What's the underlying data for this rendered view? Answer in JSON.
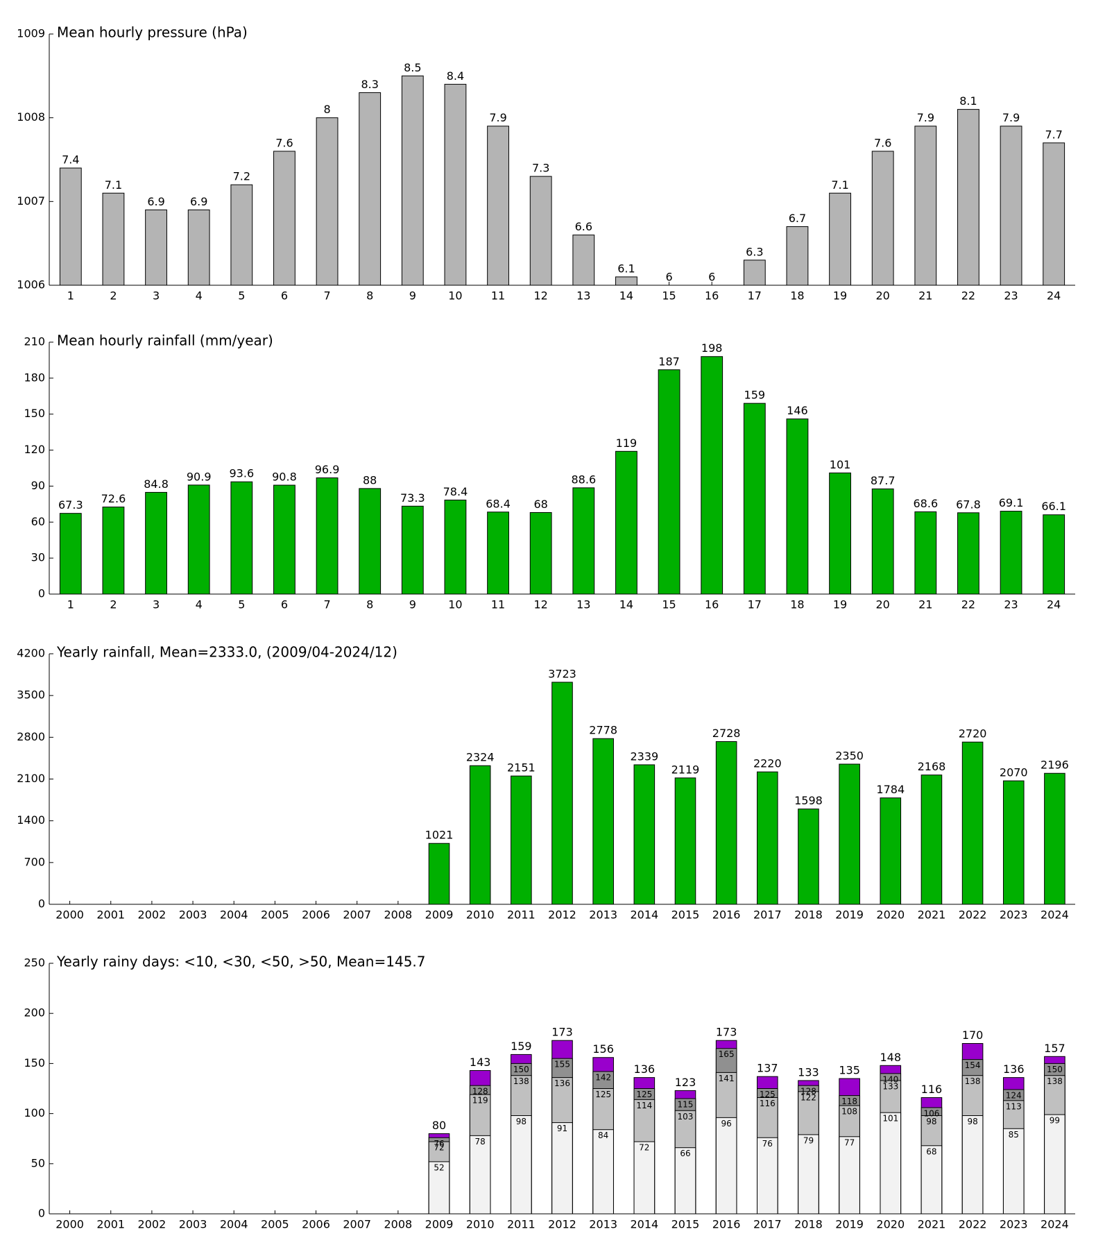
{
  "chart_data": [
    {
      "type": "bar",
      "title": "Mean hourly pressure (hPa)",
      "categories": [
        "1",
        "2",
        "3",
        "4",
        "5",
        "6",
        "7",
        "8",
        "9",
        "10",
        "11",
        "12",
        "13",
        "14",
        "15",
        "16",
        "17",
        "18",
        "19",
        "20",
        "21",
        "22",
        "23",
        "24"
      ],
      "values": [
        1007.4,
        1007.1,
        1006.9,
        1006.9,
        1007.2,
        1007.6,
        1008.0,
        1008.3,
        1008.5,
        1008.4,
        1007.9,
        1007.3,
        1006.6,
        1006.1,
        1006.0,
        1006.0,
        1006.3,
        1006.7,
        1007.1,
        1007.6,
        1007.9,
        1008.1,
        1007.9,
        1007.7
      ],
      "value_labels": [
        "7.4",
        "7.1",
        "6.9",
        "6.9",
        "7.2",
        "7.6",
        "8",
        "8.3",
        "8.5",
        "8.4",
        "7.9",
        "7.3",
        "6.6",
        "6.1",
        "6",
        "6",
        "6.3",
        "6.7",
        "7.1",
        "7.6",
        "7.9",
        "8.1",
        "7.9",
        "7.7"
      ],
      "color": "#b4b4b4",
      "ylim": [
        1006,
        1009
      ],
      "yticks": [
        1006,
        1007,
        1008,
        1009
      ]
    },
    {
      "type": "bar",
      "title": "Mean hourly rainfall (mm/year)",
      "categories": [
        "1",
        "2",
        "3",
        "4",
        "5",
        "6",
        "7",
        "8",
        "9",
        "10",
        "11",
        "12",
        "13",
        "14",
        "15",
        "16",
        "17",
        "18",
        "19",
        "20",
        "21",
        "22",
        "23",
        "24"
      ],
      "values": [
        67.3,
        72.6,
        84.8,
        90.9,
        93.6,
        90.8,
        96.9,
        88,
        73.3,
        78.4,
        68.4,
        68,
        88.6,
        119,
        187,
        198,
        159,
        146,
        101,
        87.7,
        68.6,
        67.8,
        69.1,
        66.1
      ],
      "color": "#00b000",
      "ylim": [
        0,
        210
      ],
      "yticks": [
        0,
        30,
        60,
        90,
        120,
        150,
        180,
        210
      ]
    },
    {
      "type": "bar",
      "title": "Yearly rainfall, Mean=2333.0, (2009/04-2024/12)",
      "categories": [
        "2000",
        "2001",
        "2002",
        "2003",
        "2004",
        "2005",
        "2006",
        "2007",
        "2008",
        "2009",
        "2010",
        "2011",
        "2012",
        "2013",
        "2014",
        "2015",
        "2016",
        "2017",
        "2018",
        "2019",
        "2020",
        "2021",
        "2022",
        "2023",
        "2024"
      ],
      "values": [
        null,
        null,
        null,
        null,
        null,
        null,
        null,
        null,
        null,
        1021,
        2324,
        2151,
        3723,
        2778,
        2339,
        2119,
        2728,
        2220,
        1598,
        2350,
        1784,
        2168,
        2720,
        2070,
        2196
      ],
      "color": "#00b000",
      "ylim": [
        0,
        4200
      ],
      "yticks": [
        0,
        700,
        1400,
        2100,
        2800,
        3500,
        4200
      ]
    },
    {
      "type": "bar",
      "title": "Yearly rainy days: <10, <30, <50, >50, Mean=145.7",
      "categories": [
        "2000",
        "2001",
        "2002",
        "2003",
        "2004",
        "2005",
        "2006",
        "2007",
        "2008",
        "2009",
        "2010",
        "2011",
        "2012",
        "2013",
        "2014",
        "2015",
        "2016",
        "2017",
        "2018",
        "2019",
        "2020",
        "2021",
        "2022",
        "2023",
        "2024"
      ],
      "series": [
        {
          "color": "#f2f2f2",
          "values": [
            null,
            null,
            null,
            null,
            null,
            null,
            null,
            null,
            null,
            52,
            78,
            98,
            91,
            84,
            72,
            66,
            96,
            76,
            79,
            77,
            101,
            68,
            98,
            85,
            99
          ]
        },
        {
          "color": "#c0c0c0",
          "values": [
            null,
            null,
            null,
            null,
            null,
            null,
            null,
            null,
            null,
            72,
            119,
            138,
            136,
            125,
            114,
            103,
            141,
            116,
            122,
            108,
            133,
            98,
            138,
            113,
            138
          ]
        },
        {
          "color": "#909090",
          "values": [
            null,
            null,
            null,
            null,
            null,
            null,
            null,
            null,
            null,
            76,
            128,
            150,
            155,
            142,
            125,
            115,
            165,
            125,
            128,
            118,
            140,
            106,
            154,
            124,
            150
          ]
        },
        {
          "color": "#9900cc",
          "values": [
            null,
            null,
            null,
            null,
            null,
            null,
            null,
            null,
            null,
            80,
            143,
            159,
            173,
            156,
            136,
            123,
            173,
            137,
            133,
            135,
            148,
            116,
            170,
            136,
            157
          ]
        }
      ],
      "ylim": [
        0,
        250
      ],
      "yticks": [
        0,
        50,
        100,
        150,
        200,
        250
      ]
    }
  ]
}
